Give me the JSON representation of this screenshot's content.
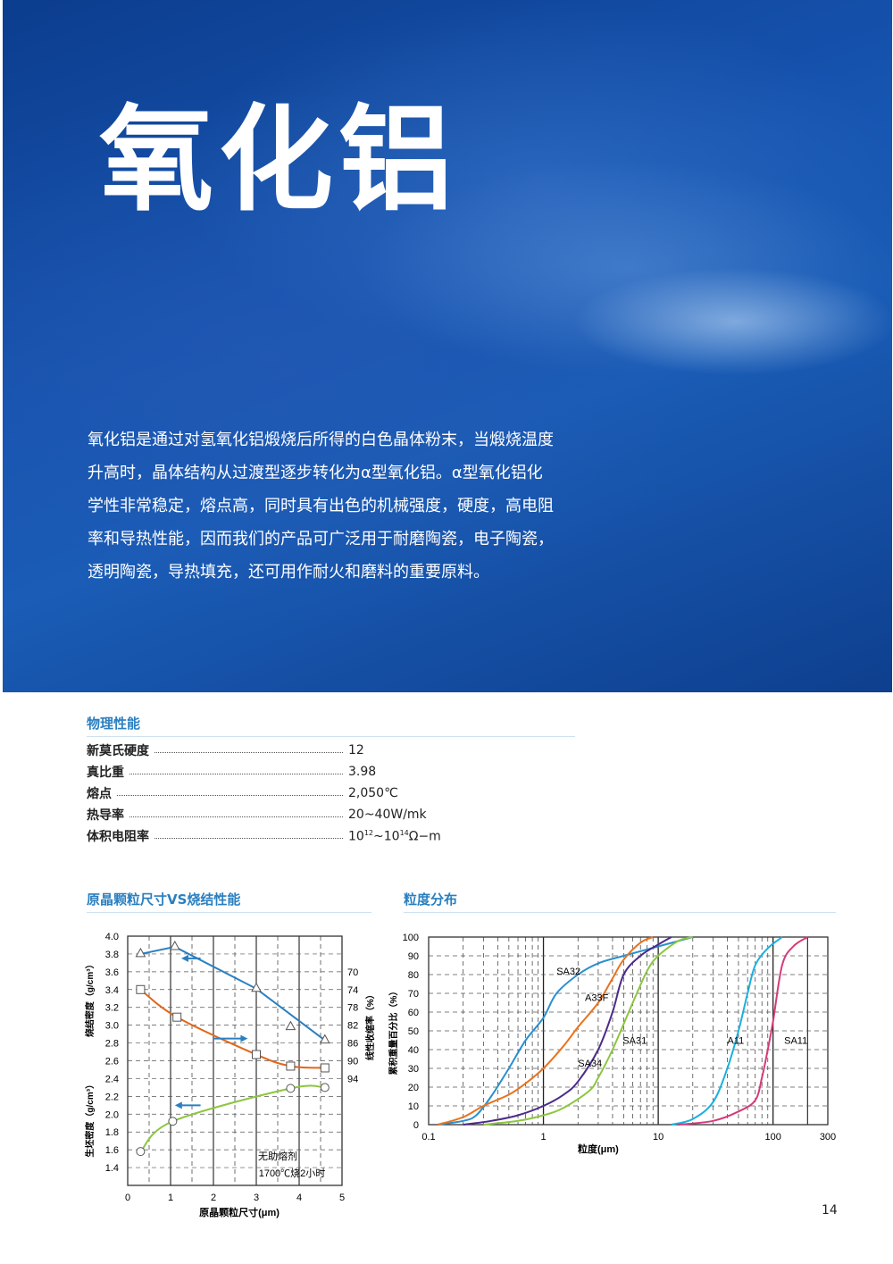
{
  "hero": {
    "title": "氧化铝",
    "intro_lines": [
      "氧化铝是通过对氢氧化铝煅烧后所得的白色晶体粉末，当煅烧温度",
      "升高时，晶体结构从过渡型逐步转化为α型氧化铝。α型氧化铝化",
      "学性非常稳定，熔点高，同时具有出色的机械强度，硬度，高电阻",
      "率和导热性能，因而我们的产品可广泛用于耐磨陶瓷，电子陶瓷，",
      "透明陶瓷，导热填充，还可用作耐火和磨料的重要原料。"
    ]
  },
  "properties": {
    "heading": "物理性能",
    "items": [
      {
        "label": "新莫氏硬度",
        "value": "12"
      },
      {
        "label": "真比重",
        "value": "3.98"
      },
      {
        "label": "熔点",
        "value": "2,050℃"
      },
      {
        "label": "热导率",
        "value": "20~40W/mk"
      },
      {
        "label": "体积电阻率",
        "value_base": "10",
        "sup1": "12",
        "mid": "~10",
        "sup2": "14",
        "unit": "Ω−m"
      }
    ]
  },
  "page_number": "14",
  "chart_data": [
    {
      "type": "line",
      "heading": "原晶颗粒尺寸VS烧结性能",
      "xlabel": "原晶颗粒尺寸(μm)",
      "ylabel_top": "烧结密度（g/cm³）",
      "ylabel_bottom": "生坯密度（g/cm³）",
      "ylabel_right": "线性收缩率（%）",
      "xlim": [
        0,
        5
      ],
      "xticks": [
        0,
        1,
        2,
        3,
        4,
        5
      ],
      "ylim": [
        1.2,
        4.0
      ],
      "yticks": [
        1.4,
        1.6,
        1.8,
        2.0,
        2.2,
        2.4,
        2.6,
        2.8,
        3.0,
        3.2,
        3.4,
        3.6,
        3.8,
        4.0
      ],
      "y2lim": [
        118,
        62
      ],
      "y2ticks": [
        70,
        74,
        78,
        82,
        86,
        90,
        94
      ],
      "grid": true,
      "annotation": [
        "无助熔剂",
        "1700℃烧2小时"
      ],
      "series": [
        {
          "marker": "triangle",
          "axis": "left",
          "color": "#2a7fc0",
          "x": [
            0.3,
            1.1,
            3.0,
            3.8,
            4.6
          ],
          "y": [
            3.8,
            3.88,
            3.41,
            2.98,
            2.83
          ]
        },
        {
          "marker": "square",
          "axis": "right",
          "color": "#e2661a",
          "x": [
            0.3,
            1.15,
            3.0,
            3.8,
            4.6
          ],
          "y": [
            74,
            80.2,
            88.6,
            91.2,
            91.6
          ]
        },
        {
          "marker": "circle",
          "axis": "left",
          "color": "#8cc63f",
          "x": [
            0.3,
            1.05,
            3.8,
            4.6
          ],
          "y": [
            1.58,
            1.92,
            2.29,
            2.3
          ]
        }
      ],
      "arrows": [
        {
          "direction": "left",
          "series": 0
        },
        {
          "direction": "right",
          "series": 1
        },
        {
          "direction": "left",
          "series": 2
        }
      ]
    },
    {
      "type": "line",
      "heading": "粒度分布",
      "xlabel": "粒度(μm)",
      "ylabel": "累积重量百分比（%）",
      "xscale": "log",
      "xlim": [
        0.1,
        300
      ],
      "xticks": [
        "0.1",
        "1",
        "10",
        "100",
        "300"
      ],
      "ylim": [
        0,
        100
      ],
      "yticks": [
        0,
        10,
        20,
        30,
        40,
        50,
        60,
        70,
        80,
        90,
        100
      ],
      "grid": true,
      "series": [
        {
          "name": "SA32",
          "color": "#2a8fcf",
          "x": [
            0.12,
            0.2,
            0.26,
            0.35,
            0.5,
            0.7,
            1,
            1.3,
            2,
            3,
            5,
            10,
            20
          ],
          "y": [
            0,
            2,
            5,
            15,
            30,
            45,
            57,
            70,
            80,
            86,
            90,
            95,
            100
          ]
        },
        {
          "name": "A33F",
          "color": "#e8731f",
          "x": [
            0.12,
            0.2,
            0.3,
            0.5,
            0.7,
            1,
            1.5,
            2,
            3,
            4,
            5,
            7,
            9
          ],
          "y": [
            0,
            4,
            10,
            16,
            22,
            30,
            42,
            52,
            65,
            78,
            88,
            97,
            100
          ]
        },
        {
          "name": "SA34",
          "color": "#4b2a8a",
          "x": [
            0.2,
            0.35,
            0.6,
            1,
            1.5,
            2,
            3,
            4,
            5,
            7,
            10,
            13
          ],
          "y": [
            0,
            2,
            5,
            10,
            16,
            23,
            40,
            60,
            80,
            90,
            96,
            100
          ]
        },
        {
          "name": "SA31",
          "color": "#8cc63f",
          "x": [
            0.3,
            0.6,
            1,
            1.5,
            2.5,
            3,
            4,
            6,
            8,
            10,
            15,
            20
          ],
          "y": [
            0,
            2,
            5,
            9,
            18,
            25,
            40,
            65,
            82,
            90,
            98,
            100
          ]
        },
        {
          "name": "A11",
          "color": "#1ab0e0",
          "x": [
            13,
            20,
            30,
            40,
            50,
            60,
            70,
            90,
            120
          ],
          "y": [
            0,
            3,
            12,
            30,
            50,
            70,
            85,
            94,
            100
          ]
        },
        {
          "name": "SA11",
          "color": "#d63a78",
          "x": [
            15,
            30,
            50,
            70,
            80,
            90,
            100,
            120,
            150,
            200
          ],
          "y": [
            0,
            2,
            7,
            13,
            25,
            40,
            55,
            85,
            95,
            100
          ]
        }
      ],
      "labels": [
        {
          "text": "SA32",
          "x": 1.3,
          "y": 80
        },
        {
          "text": "A33F",
          "x": 2.3,
          "y": 66
        },
        {
          "text": "SA34",
          "x": 2.0,
          "y": 31
        },
        {
          "text": "SA31",
          "x": 4.9,
          "y": 43
        },
        {
          "text": "A11",
          "x": 40,
          "y": 43
        },
        {
          "text": "SA11",
          "x": 125,
          "y": 43
        }
      ]
    }
  ]
}
